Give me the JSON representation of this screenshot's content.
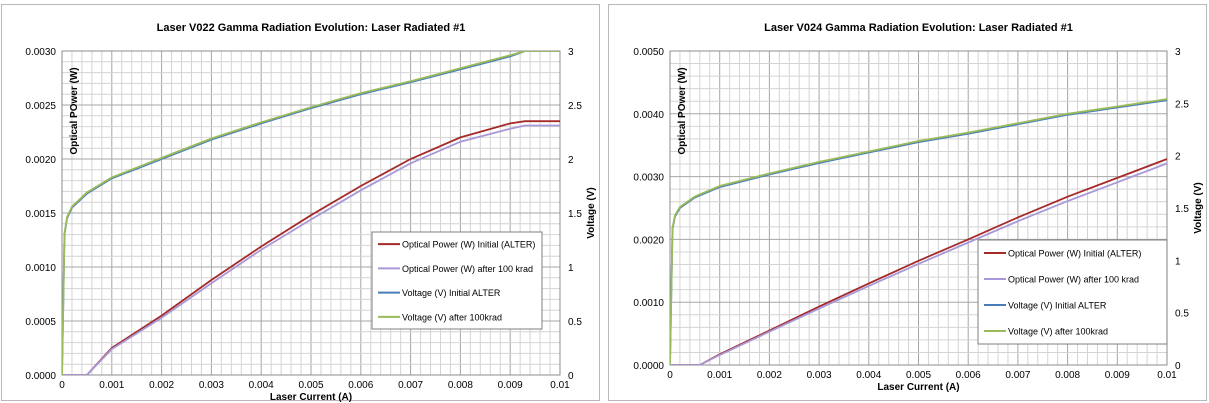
{
  "chart_data": [
    {
      "type": "line",
      "title": "Laser V022 Gamma Radiation Evolution: Laser Radiated #1",
      "xlabel": "Laser Current (A)",
      "ylabel": "Optical POwer (W)",
      "y2label": "Voltage (V)",
      "xlim": [
        0,
        0.01
      ],
      "ylim": [
        0,
        0.003
      ],
      "y2lim": [
        0,
        3
      ],
      "x_ticks": [
        "0",
        "0.001",
        "0.002",
        "0.003",
        "0.004",
        "0.005",
        "0.006",
        "0.007",
        "0.008",
        "0.009",
        "0.01"
      ],
      "y_ticks": [
        "0.0000",
        "0.0005",
        "0.0010",
        "0.0015",
        "0.0020",
        "0.0025",
        "0.0030"
      ],
      "y2_ticks": [
        "0",
        "0.5",
        "1",
        "1.5",
        "2",
        "2.5",
        "3"
      ],
      "grid": true,
      "legend_position": "center-right",
      "series": [
        {
          "name": "Optical Power (W) Initial (ALTER)",
          "axis": "left",
          "color": "#a52a2a",
          "x": [
            0,
            0.0005,
            0.001,
            0.002,
            0.003,
            0.004,
            0.005,
            0.006,
            0.007,
            0.008,
            0.009,
            0.0093,
            0.01
          ],
          "y": [
            0,
            0,
            0.00025,
            0.00055,
            0.00088,
            0.00119,
            0.00148,
            0.00175,
            0.002,
            0.0022,
            0.00233,
            0.00235,
            0.00235
          ]
        },
        {
          "name": "Optical Power (W) after 100 krad",
          "axis": "left",
          "color": "#a998d8",
          "x": [
            0,
            0.0005,
            0.001,
            0.002,
            0.003,
            0.004,
            0.005,
            0.006,
            0.007,
            0.008,
            0.009,
            0.0093,
            0.01
          ],
          "y": [
            0,
            0,
            0.00024,
            0.00053,
            0.00085,
            0.00116,
            0.00144,
            0.00171,
            0.00196,
            0.00216,
            0.00228,
            0.00231,
            0.00231
          ]
        },
        {
          "name": "Voltage (V) Initial ALTER",
          "axis": "right",
          "color": "#4a7ebb",
          "x": [
            0,
            5e-05,
            0.0001,
            0.0002,
            0.0005,
            0.001,
            0.002,
            0.003,
            0.004,
            0.005,
            0.006,
            0.007,
            0.008,
            0.009,
            0.0093,
            0.01
          ],
          "y": [
            0,
            1.3,
            1.45,
            1.55,
            1.68,
            1.82,
            2.0,
            2.18,
            2.33,
            2.47,
            2.6,
            2.71,
            2.83,
            2.95,
            3.0,
            3.0
          ]
        },
        {
          "name": "Voltage (V) after 100krad",
          "axis": "right",
          "color": "#9bbb59",
          "x": [
            0,
            5e-05,
            0.0001,
            0.0002,
            0.0005,
            0.001,
            0.002,
            0.003,
            0.004,
            0.005,
            0.006,
            0.007,
            0.008,
            0.009,
            0.0093,
            0.01
          ],
          "y": [
            0,
            1.31,
            1.46,
            1.56,
            1.69,
            1.83,
            2.01,
            2.19,
            2.34,
            2.48,
            2.61,
            2.72,
            2.84,
            2.96,
            3.0,
            3.0
          ]
        }
      ]
    },
    {
      "type": "line",
      "title": "Laser V024 Gamma Radiation Evolution: Laser Radiated #1",
      "xlabel": "Laser Current (A)",
      "ylabel": "Optical POwer (W)",
      "y2label": "Voltage (V)",
      "xlim": [
        0,
        0.01
      ],
      "ylim": [
        0,
        0.005
      ],
      "y2lim": [
        0,
        3
      ],
      "x_ticks": [
        "0",
        "0.001",
        "0.002",
        "0.003",
        "0.004",
        "0.005",
        "0.006",
        "0.007",
        "0.008",
        "0.009",
        "0.01"
      ],
      "y_ticks": [
        "0.0000",
        "0.0010",
        "0.0020",
        "0.0030",
        "0.0040",
        "0.0050"
      ],
      "y2_ticks": [
        "0",
        "0.5",
        "1",
        "1.5",
        "2",
        "2.5",
        "3"
      ],
      "grid": true,
      "legend_position": "center-right",
      "series": [
        {
          "name": "Optical Power (W) Initial (ALTER)",
          "axis": "left",
          "color": "#a52a2a",
          "x": [
            0,
            0.0006,
            0.001,
            0.002,
            0.003,
            0.004,
            0.005,
            0.006,
            0.007,
            0.008,
            0.009,
            0.01
          ],
          "y": [
            0,
            0,
            0.00017,
            0.00055,
            0.00093,
            0.0013,
            0.00166,
            0.002,
            0.00235,
            0.00268,
            0.00298,
            0.00328
          ]
        },
        {
          "name": "Optical Power (W) after 100 krad",
          "axis": "left",
          "color": "#a998d8",
          "x": [
            0,
            0.0006,
            0.001,
            0.002,
            0.003,
            0.004,
            0.005,
            0.006,
            0.007,
            0.008,
            0.009,
            0.01
          ],
          "y": [
            0,
            0,
            0.00016,
            0.00053,
            0.0009,
            0.00126,
            0.00161,
            0.00195,
            0.00229,
            0.00261,
            0.00291,
            0.00321
          ]
        },
        {
          "name": "Voltage (V) Initial ALTER",
          "axis": "right",
          "color": "#4a7ebb",
          "x": [
            0,
            5e-05,
            0.0001,
            0.0002,
            0.0005,
            0.001,
            0.002,
            0.003,
            0.004,
            0.005,
            0.006,
            0.007,
            0.008,
            0.009,
            0.01
          ],
          "y": [
            0,
            1.3,
            1.42,
            1.5,
            1.6,
            1.7,
            1.82,
            1.93,
            2.03,
            2.13,
            2.21,
            2.3,
            2.39,
            2.46,
            2.53
          ]
        },
        {
          "name": "Voltage (V) after 100krad",
          "axis": "right",
          "color": "#9bbb59",
          "x": [
            0,
            5e-05,
            0.0001,
            0.0002,
            0.0005,
            0.001,
            0.002,
            0.003,
            0.004,
            0.005,
            0.006,
            0.007,
            0.008,
            0.009,
            0.01
          ],
          "y": [
            0,
            1.31,
            1.43,
            1.51,
            1.61,
            1.71,
            1.83,
            1.94,
            2.04,
            2.14,
            2.22,
            2.31,
            2.4,
            2.47,
            2.54
          ]
        }
      ]
    }
  ]
}
